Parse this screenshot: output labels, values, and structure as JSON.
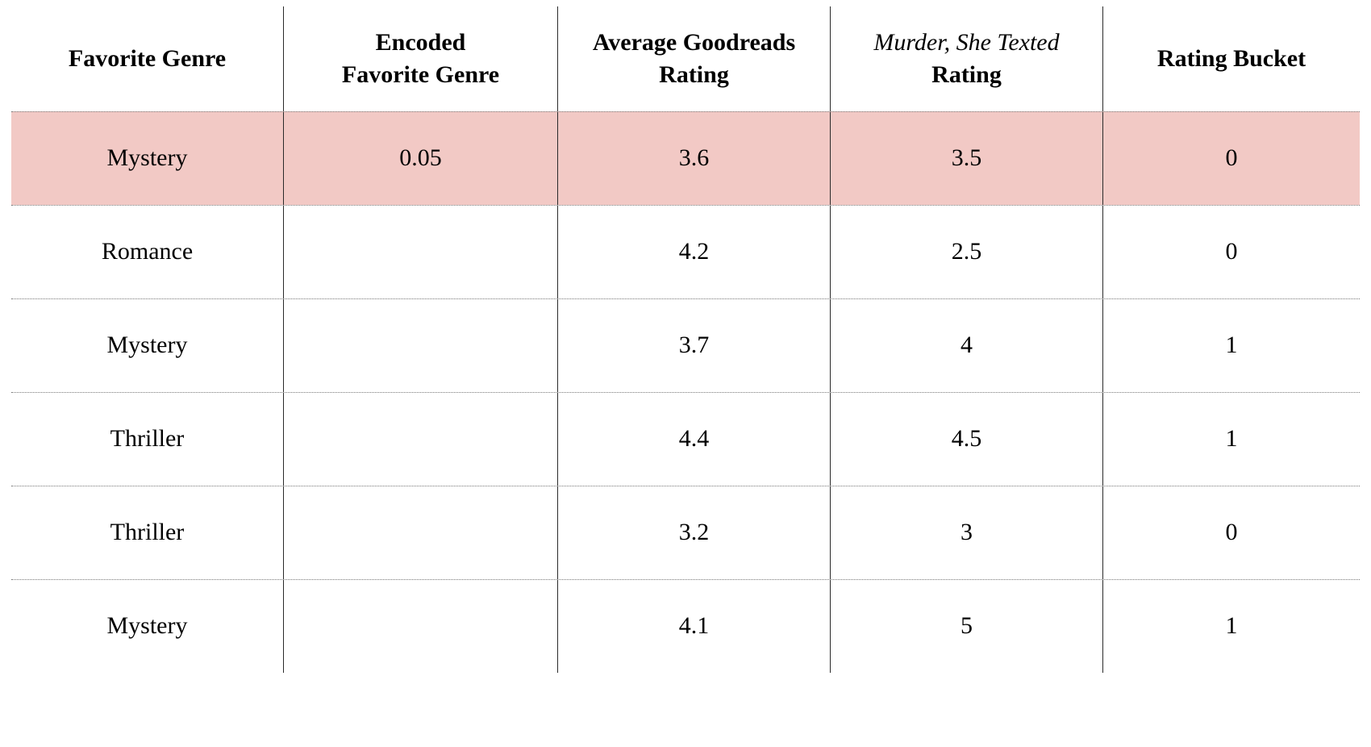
{
  "table_style": {
    "highlight_color": "#f2c9c5",
    "grid_line_color": "#2a2a2a",
    "dotted_line_color": "#777777"
  },
  "header_lines": [
    {
      "line1": "Favorite Genre",
      "line2": ""
    },
    {
      "line1": "Encoded",
      "line2": "Favorite Genre"
    },
    {
      "line1": "Average Goodreads",
      "line2": "Rating"
    },
    {
      "line1": "Murder, She Texted",
      "line2": "Rating"
    },
    {
      "line1": "Rating Bucket",
      "line2": ""
    }
  ],
  "chart_data": {
    "type": "table",
    "title": "",
    "columns": [
      "Favorite Genre",
      "Encoded Favorite Genre",
      "Average Goodreads Rating",
      "Murder, She Texted Rating",
      "Rating Bucket"
    ],
    "rows": [
      [
        "Mystery",
        "0.05",
        "3.6",
        "3.5",
        "0"
      ],
      [
        "Romance",
        "",
        "4.2",
        "2.5",
        "0"
      ],
      [
        "Mystery",
        "",
        "3.7",
        "4",
        "1"
      ],
      [
        "Thriller",
        "",
        "4.4",
        "4.5",
        "1"
      ],
      [
        "Thriller",
        "",
        "3.2",
        "3",
        "0"
      ],
      [
        "Mystery",
        "",
        "4.1",
        "5",
        "1"
      ]
    ],
    "highlighted_row_index": 0,
    "layout": {
      "column_separators": "solid",
      "row_separators": "dotted",
      "outer_border": "none"
    }
  }
}
